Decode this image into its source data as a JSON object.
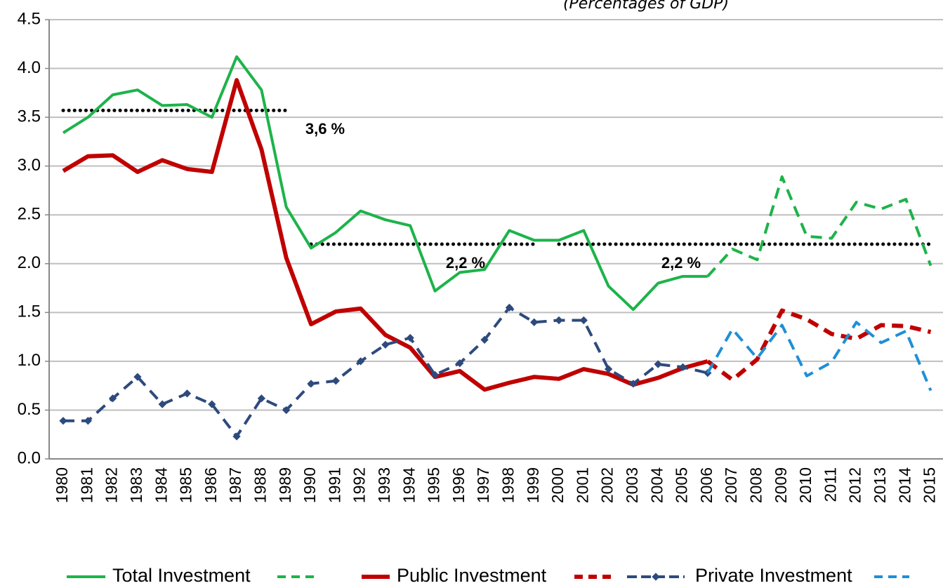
{
  "chart_data": {
    "type": "line",
    "title": "(Percentages of GDP)",
    "categories": [
      "1980",
      "1981",
      "1982",
      "1983",
      "1984",
      "1985",
      "1986",
      "1987",
      "1988",
      "1989",
      "1990",
      "1991",
      "1992",
      "1993",
      "1994",
      "1995",
      "1996",
      "1997",
      "1998",
      "1999",
      "2000",
      "2001",
      "2002",
      "2003",
      "2004",
      "2005",
      "2006",
      "2007",
      "2008",
      "2009",
      "2010",
      "2011",
      "2012",
      "2013",
      "2014",
      "2015"
    ],
    "series": [
      {
        "name": "Total Investment",
        "color": "#1db34a",
        "values": [
          3.34,
          3.5,
          3.73,
          3.78,
          3.62,
          3.63,
          3.5,
          4.12,
          3.78,
          2.58,
          2.16,
          2.32,
          2.54,
          2.45,
          2.39,
          1.72,
          1.91,
          1.94,
          2.34,
          2.24,
          2.24,
          2.34,
          1.77,
          1.53,
          1.8,
          1.87,
          1.87,
          null,
          null,
          null,
          null,
          null,
          null,
          null,
          null,
          null
        ]
      },
      {
        "color": "#1db34a",
        "dashed": true,
        "values": [
          null,
          null,
          null,
          null,
          null,
          null,
          null,
          null,
          null,
          null,
          null,
          null,
          null,
          null,
          null,
          null,
          null,
          null,
          null,
          null,
          null,
          null,
          null,
          null,
          null,
          null,
          1.87,
          2.15,
          2.04,
          2.89,
          2.28,
          2.26,
          2.63,
          2.56,
          2.66,
          1.98
        ]
      },
      {
        "name": "Public Investment",
        "color": "#c00000",
        "values": [
          2.95,
          3.1,
          3.11,
          2.94,
          3.06,
          2.97,
          2.94,
          3.88,
          3.17,
          2.06,
          1.38,
          1.51,
          1.54,
          1.27,
          1.14,
          0.84,
          0.9,
          0.71,
          0.78,
          0.84,
          0.82,
          0.92,
          0.87,
          0.76,
          0.83,
          0.93,
          1.0,
          null,
          null,
          null,
          null,
          null,
          null,
          null,
          null,
          null
        ]
      },
      {
        "color": "#c00000",
        "dashed": true,
        "values": [
          null,
          null,
          null,
          null,
          null,
          null,
          null,
          null,
          null,
          null,
          null,
          null,
          null,
          null,
          null,
          null,
          null,
          null,
          null,
          null,
          null,
          null,
          null,
          null,
          null,
          null,
          1.0,
          0.81,
          1.02,
          1.52,
          1.43,
          1.28,
          1.23,
          1.37,
          1.36,
          1.3
        ]
      },
      {
        "name": "Private Investment",
        "color": "#2e4a7d",
        "dashed": true,
        "markers": true,
        "values": [
          0.39,
          0.39,
          0.62,
          0.84,
          0.56,
          0.67,
          0.56,
          0.23,
          0.62,
          0.5,
          0.77,
          0.8,
          1.0,
          1.17,
          1.24,
          0.86,
          0.98,
          1.22,
          1.55,
          1.4,
          1.42,
          1.42,
          0.92,
          0.77,
          0.97,
          0.94,
          0.88,
          null,
          null,
          null,
          null,
          null,
          null,
          null,
          null,
          null
        ]
      },
      {
        "color": "#1f8fd6",
        "dashed": true,
        "values": [
          null,
          null,
          null,
          null,
          null,
          null,
          null,
          null,
          null,
          null,
          null,
          null,
          null,
          null,
          null,
          null,
          null,
          null,
          null,
          null,
          null,
          null,
          null,
          null,
          null,
          null,
          0.88,
          1.33,
          1.03,
          1.37,
          0.85,
          0.99,
          1.4,
          1.19,
          1.31,
          0.7
        ]
      }
    ],
    "reference_lines": [
      {
        "value": 3.57,
        "from": "1980",
        "to": "1989",
        "label": "3,6 %"
      },
      {
        "value": 2.2,
        "from": "1990",
        "to": "1999",
        "label": "2,2 %"
      },
      {
        "value": 2.2,
        "from": "2000",
        "to": "2015",
        "label": "2,2 %"
      }
    ],
    "ylim": [
      0,
      4.5
    ],
    "yticks": [
      {
        "value": 0,
        "label": "0.0"
      },
      0.5,
      {
        "value": 1,
        "label": "1.0"
      },
      1.5,
      {
        "value": 2,
        "label": "2.0"
      },
      2.5,
      {
        "value": 3,
        "label": "3.0"
      },
      3.5,
      {
        "value": 4,
        "label": "4.0"
      },
      4.5
    ],
    "grid": true
  }
}
